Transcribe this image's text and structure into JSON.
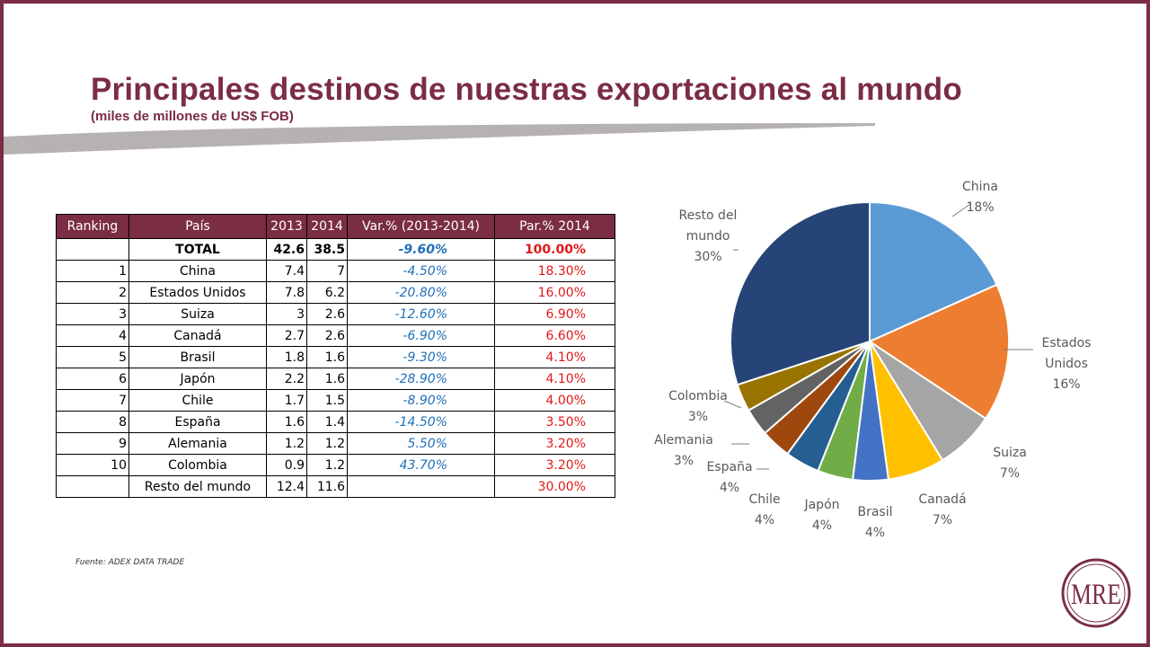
{
  "title": "Principales destinos de nuestras exportaciones al mundo",
  "subtitle": "(miles de millones de US$ FOB)",
  "table": {
    "headers": [
      "Ranking",
      "País",
      "2013",
      "2014",
      "Var.% (2013-2014)",
      "Par.% 2014"
    ],
    "rows": [
      {
        "rank": "",
        "country": "TOTAL",
        "y2013": "42.6",
        "y2014": "38.5",
        "var": "-9.60%",
        "par": "100.00%"
      },
      {
        "rank": "1",
        "country": "China",
        "y2013": "7.4",
        "y2014": "7",
        "var": "-4.50%",
        "par": "18.30%"
      },
      {
        "rank": "2",
        "country": "Estados Unidos",
        "y2013": "7.8",
        "y2014": "6.2",
        "var": "-20.80%",
        "par": "16.00%"
      },
      {
        "rank": "3",
        "country": "Suiza",
        "y2013": "3",
        "y2014": "2.6",
        "var": "-12.60%",
        "par": "6.90%"
      },
      {
        "rank": "4",
        "country": "Canadá",
        "y2013": "2.7",
        "y2014": "2.6",
        "var": "-6.90%",
        "par": "6.60%"
      },
      {
        "rank": "5",
        "country": "Brasil",
        "y2013": "1.8",
        "y2014": "1.6",
        "var": "-9.30%",
        "par": "4.10%"
      },
      {
        "rank": "6",
        "country": "Japón",
        "y2013": "2.2",
        "y2014": "1.6",
        "var": "-28.90%",
        "par": "4.10%"
      },
      {
        "rank": "7",
        "country": "Chile",
        "y2013": "1.7",
        "y2014": "1.5",
        "var": "-8.90%",
        "par": "4.00%"
      },
      {
        "rank": "8",
        "country": "España",
        "y2013": "1.6",
        "y2014": "1.4",
        "var": "-14.50%",
        "par": "3.50%"
      },
      {
        "rank": "9",
        "country": "Alemania",
        "y2013": "1.2",
        "y2014": "1.2",
        "var": "5.50%",
        "par": "3.20%"
      },
      {
        "rank": "10",
        "country": "Colombia",
        "y2013": "0.9",
        "y2014": "1.2",
        "var": "43.70%",
        "par": "3.20%"
      },
      {
        "rank": "",
        "country": "Resto del mundo",
        "y2013": "12.4",
        "y2014": "11.6",
        "var": "",
        "par": "30.00%"
      }
    ]
  },
  "source": "Fuente: ADEX DATA TRADE",
  "logo_text": "MRE",
  "colors": {
    "brand": "#7b2d43",
    "var_text": "#1f6fb8",
    "par_text": "#e11818"
  },
  "chart_data": {
    "type": "pie",
    "unit": "%",
    "slices": [
      {
        "label": "China",
        "value": 18.3,
        "display": "18%",
        "color": "#5b9bd5"
      },
      {
        "label": "Estados Unidos",
        "value": 16.0,
        "display": "16%",
        "color": "#ed7d31"
      },
      {
        "label": "Suiza",
        "value": 6.9,
        "display": "7%",
        "color": "#a5a5a5"
      },
      {
        "label": "Canadá",
        "value": 6.6,
        "display": "7%",
        "color": "#ffc000"
      },
      {
        "label": "Brasil",
        "value": 4.1,
        "display": "4%",
        "color": "#4472c4"
      },
      {
        "label": "Japón",
        "value": 4.1,
        "display": "4%",
        "color": "#70ad47"
      },
      {
        "label": "Chile",
        "value": 4.0,
        "display": "4%",
        "color": "#255e91"
      },
      {
        "label": "España",
        "value": 3.5,
        "display": "4%",
        "color": "#9e480e"
      },
      {
        "label": "Alemania",
        "value": 3.2,
        "display": "3%",
        "color": "#636363"
      },
      {
        "label": "Colombia",
        "value": 3.2,
        "display": "3%",
        "color": "#997300"
      },
      {
        "label": "Resto del mundo",
        "value": 30.0,
        "display": "30%",
        "color": "#264478"
      }
    ]
  }
}
